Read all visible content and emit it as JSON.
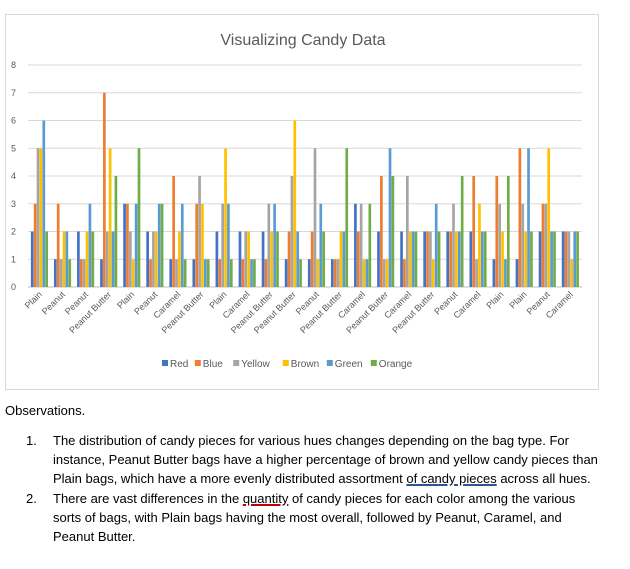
{
  "chart_data": {
    "type": "bar",
    "title": "Visualizing Candy Data",
    "xlabel": "",
    "ylabel": "",
    "ylim": [
      0,
      8
    ],
    "yticks": [
      0,
      1,
      2,
      3,
      4,
      5,
      6,
      7,
      8
    ],
    "grid": true,
    "legend_position": "bottom",
    "categories": [
      "Plain",
      "Peanut",
      "Peanut",
      "Peanut Butter",
      "Plain",
      "Peanut",
      "Caramel",
      "Peanut Butter",
      "Plain",
      "Caramel",
      "Peanut Butter",
      "Peanut Butter",
      "Peanut",
      "Peanut Butter",
      "Caramel",
      "Peanut Butter",
      "Caramel",
      "Peanut Butter",
      "Peanut",
      "Caramel",
      "Plain",
      "Plain",
      "Peanut",
      "Caramel"
    ],
    "series": [
      {
        "name": "Red",
        "color": "#4472c4",
        "values": [
          2,
          1,
          2,
          1,
          3,
          2,
          1,
          1,
          2,
          2,
          2,
          1,
          1,
          1,
          3,
          2,
          2,
          2,
          2,
          2,
          1,
          1,
          2,
          2
        ]
      },
      {
        "name": "Blue",
        "color": "#ed7d31",
        "values": [
          3,
          3,
          1,
          7,
          3,
          1,
          4,
          3,
          1,
          1,
          1,
          2,
          2,
          1,
          2,
          4,
          1,
          2,
          2,
          4,
          4,
          5,
          3,
          2
        ]
      },
      {
        "name": "Yellow",
        "color": "#a5a5a5",
        "values": [
          5,
          1,
          1,
          2,
          2,
          2,
          1,
          4,
          3,
          2,
          3,
          4,
          5,
          1,
          3,
          1,
          4,
          2,
          3,
          1,
          3,
          3,
          3,
          2
        ]
      },
      {
        "name": "Brown",
        "color": "#ffc000",
        "values": [
          5,
          2,
          2,
          5,
          1,
          2,
          2,
          3,
          5,
          2,
          2,
          6,
          1,
          2,
          1,
          1,
          2,
          1,
          2,
          3,
          2,
          2,
          5,
          1
        ]
      },
      {
        "name": "Green",
        "color": "#5b9bd5",
        "values": [
          6,
          2,
          3,
          2,
          3,
          3,
          3,
          1,
          3,
          1,
          3,
          2,
          3,
          2,
          1,
          5,
          2,
          3,
          2,
          2,
          1,
          5,
          2,
          2
        ]
      },
      {
        "name": "Orange",
        "color": "#70ad47",
        "values": [
          2,
          1,
          2,
          4,
          5,
          3,
          1,
          1,
          1,
          1,
          2,
          1,
          2,
          5,
          3,
          4,
          2,
          2,
          4,
          2,
          4,
          2,
          2,
          2
        ]
      }
    ]
  },
  "observations": {
    "heading": "Observations.",
    "items": [
      {
        "number": "1.",
        "text_before": "The distribution of candy pieces for various hues changes depending on the bag type. For instance, Peanut Butter bags have a higher percentage of brown and yellow candy pieces than Plain bags, which have a more evenly distributed assortment ",
        "underlined": "of candy pieces",
        "text_after": " across all hues."
      },
      {
        "number": "2.",
        "text_before": "There are vast differences in the ",
        "underlined": "quantity",
        "text_after": " of candy pieces for each color among the various sorts of bags, with Plain bags having the most overall, followed by Peanut, Caramel, and Peanut Butter."
      }
    ]
  }
}
